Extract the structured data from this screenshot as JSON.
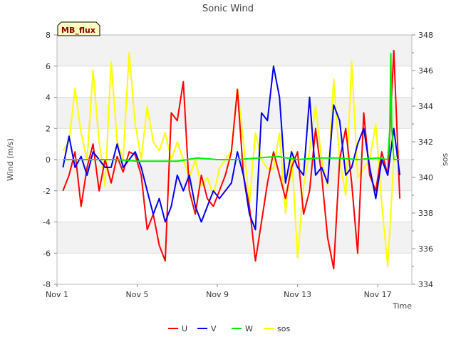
{
  "chart_data": {
    "type": "line",
    "title": "Sonic Wind",
    "badge": "MB_flux",
    "xlabel": "Time",
    "ylabel": "Wind (m/s)",
    "y2label": "sos",
    "xlim": [
      0,
      17.7
    ],
    "ylim": [
      -8,
      8
    ],
    "y2lim": [
      334,
      348
    ],
    "x_ticks": [
      {
        "value": 0,
        "label": "Nov 1"
      },
      {
        "value": 4,
        "label": "Nov 5"
      },
      {
        "value": 8,
        "label": "Nov 9"
      },
      {
        "value": 12,
        "label": "Nov 13"
      },
      {
        "value": 16,
        "label": "Nov 17"
      }
    ],
    "y_ticks": [
      -8,
      -6,
      -4,
      -2,
      0,
      2,
      4,
      6,
      8
    ],
    "y2_ticks": [
      334,
      336,
      338,
      340,
      342,
      344,
      346,
      348
    ],
    "grid_bands": true,
    "legend_position": "bottom",
    "series": [
      {
        "name": "U",
        "color": "#ff0000",
        "axis": "left",
        "x": [
          0.3,
          0.6,
          0.9,
          1.2,
          1.5,
          1.8,
          2.1,
          2.4,
          2.7,
          3.0,
          3.3,
          3.6,
          3.9,
          4.2,
          4.5,
          4.8,
          5.1,
          5.4,
          5.7,
          6.0,
          6.3,
          6.6,
          6.9,
          7.2,
          7.5,
          7.8,
          8.1,
          8.4,
          8.7,
          9.0,
          9.3,
          9.6,
          9.9,
          10.2,
          10.5,
          10.8,
          11.1,
          11.4,
          11.7,
          12.0,
          12.3,
          12.6,
          12.9,
          13.2,
          13.5,
          13.8,
          14.1,
          14.4,
          14.7,
          15.0,
          15.3,
          15.6,
          15.9,
          16.2,
          16.5,
          16.8,
          17.1
        ],
        "y": [
          -2.0,
          -1.0,
          0.5,
          -3.0,
          -0.5,
          1.0,
          -2.0,
          0.0,
          -1.5,
          0.2,
          -0.8,
          0.5,
          0.3,
          -1.0,
          -4.5,
          -3.5,
          -5.5,
          -6.5,
          3.0,
          2.5,
          5.0,
          -2.0,
          -3.5,
          -1.0,
          -2.5,
          -3.0,
          -2.0,
          -1.0,
          0.5,
          4.5,
          -1.0,
          -3.0,
          -6.5,
          -4.0,
          -1.5,
          0.5,
          -1.0,
          -2.5,
          -0.5,
          0.5,
          -3.5,
          -2.0,
          2.0,
          -1.0,
          -5.0,
          -7.0,
          0.0,
          2.0,
          -1.5,
          -6.0,
          3.0,
          -1.0,
          -2.0,
          0.5,
          -1.0,
          7.0,
          -2.5
        ]
      },
      {
        "name": "V",
        "color": "#0000ee",
        "axis": "left",
        "x": [
          0.3,
          0.6,
          0.9,
          1.2,
          1.5,
          1.8,
          2.1,
          2.4,
          2.7,
          3.0,
          3.3,
          3.6,
          3.9,
          4.2,
          4.5,
          4.8,
          5.1,
          5.4,
          5.7,
          6.0,
          6.3,
          6.6,
          6.9,
          7.2,
          7.5,
          7.8,
          8.1,
          8.4,
          8.7,
          9.0,
          9.3,
          9.6,
          9.9,
          10.2,
          10.5,
          10.8,
          11.1,
          11.4,
          11.7,
          12.0,
          12.3,
          12.6,
          12.9,
          13.2,
          13.5,
          13.8,
          14.1,
          14.4,
          14.7,
          15.0,
          15.3,
          15.6,
          15.9,
          16.2,
          16.5,
          16.8,
          17.1
        ],
        "y": [
          -0.5,
          1.5,
          -0.5,
          0.2,
          -1.0,
          0.5,
          0.0,
          -0.5,
          -0.5,
          1.0,
          -0.5,
          0.0,
          0.5,
          -0.5,
          -2.0,
          -3.5,
          -2.5,
          -4.0,
          -3.0,
          -1.0,
          -2.0,
          -1.0,
          -3.0,
          -4.0,
          -3.0,
          -2.0,
          -2.5,
          -2.0,
          -1.5,
          0.5,
          -1.0,
          -3.5,
          -4.5,
          3.0,
          2.5,
          6.0,
          4.0,
          -1.5,
          0.5,
          -0.5,
          -1.0,
          4.0,
          -1.0,
          -0.5,
          -1.5,
          3.5,
          2.5,
          -1.0,
          -0.5,
          1.0,
          2.0,
          -0.5,
          -2.5,
          0.0,
          -1.0,
          2.0,
          -1.0
        ]
      },
      {
        "name": "W",
        "color": "#00ee00",
        "axis": "left",
        "x": [
          0.3,
          1.0,
          2.0,
          3.0,
          4.0,
          5.0,
          6.0,
          7.0,
          8.0,
          9.0,
          10.0,
          11.0,
          12.0,
          13.0,
          14.0,
          15.0,
          16.0,
          16.5,
          16.6,
          16.65,
          16.7,
          16.8,
          17.1
        ],
        "y": [
          0.0,
          0.0,
          0.0,
          0.0,
          -0.1,
          -0.1,
          -0.1,
          0.1,
          0.0,
          0.0,
          0.1,
          0.2,
          0.0,
          0.1,
          0.1,
          0.0,
          0.1,
          0.0,
          2.0,
          6.8,
          2.0,
          0.0,
          0.0
        ]
      },
      {
        "name": "sos",
        "color": "#ffff00",
        "axis": "right",
        "x": [
          0.3,
          0.6,
          0.9,
          1.2,
          1.5,
          1.8,
          2.1,
          2.4,
          2.7,
          3.0,
          3.3,
          3.6,
          3.9,
          4.2,
          4.5,
          4.8,
          5.1,
          5.4,
          5.7,
          6.0,
          6.3,
          6.6,
          6.9,
          7.2,
          7.5,
          7.8,
          8.1,
          8.4,
          8.7,
          9.0,
          9.3,
          9.6,
          9.9,
          10.2,
          10.5,
          10.8,
          11.1,
          11.4,
          11.7,
          12.0,
          12.3,
          12.6,
          12.9,
          13.2,
          13.5,
          13.8,
          14.1,
          14.4,
          14.7,
          15.0,
          15.3,
          15.6,
          15.9,
          16.2,
          16.5,
          16.8,
          17.1
        ],
        "y": [
          341.5,
          342.0,
          345.0,
          342.5,
          341.0,
          346.0,
          342.0,
          339.5,
          346.5,
          342.0,
          341.0,
          347.0,
          343.0,
          341.0,
          344.0,
          342.0,
          341.5,
          342.5,
          341.0,
          342.0,
          341.0,
          340.0,
          341.0,
          339.5,
          340.0,
          339.0,
          340.5,
          341.0,
          341.5,
          345.0,
          342.0,
          338.5,
          342.5,
          341.0,
          340.5,
          340.5,
          342.5,
          338.0,
          341.5,
          335.5,
          339.5,
          341.5,
          344.0,
          341.0,
          339.5,
          345.5,
          341.0,
          339.0,
          346.5,
          340.0,
          340.5,
          341.0,
          343.0,
          338.5,
          335.0,
          341.0,
          341.5
        ]
      }
    ]
  }
}
